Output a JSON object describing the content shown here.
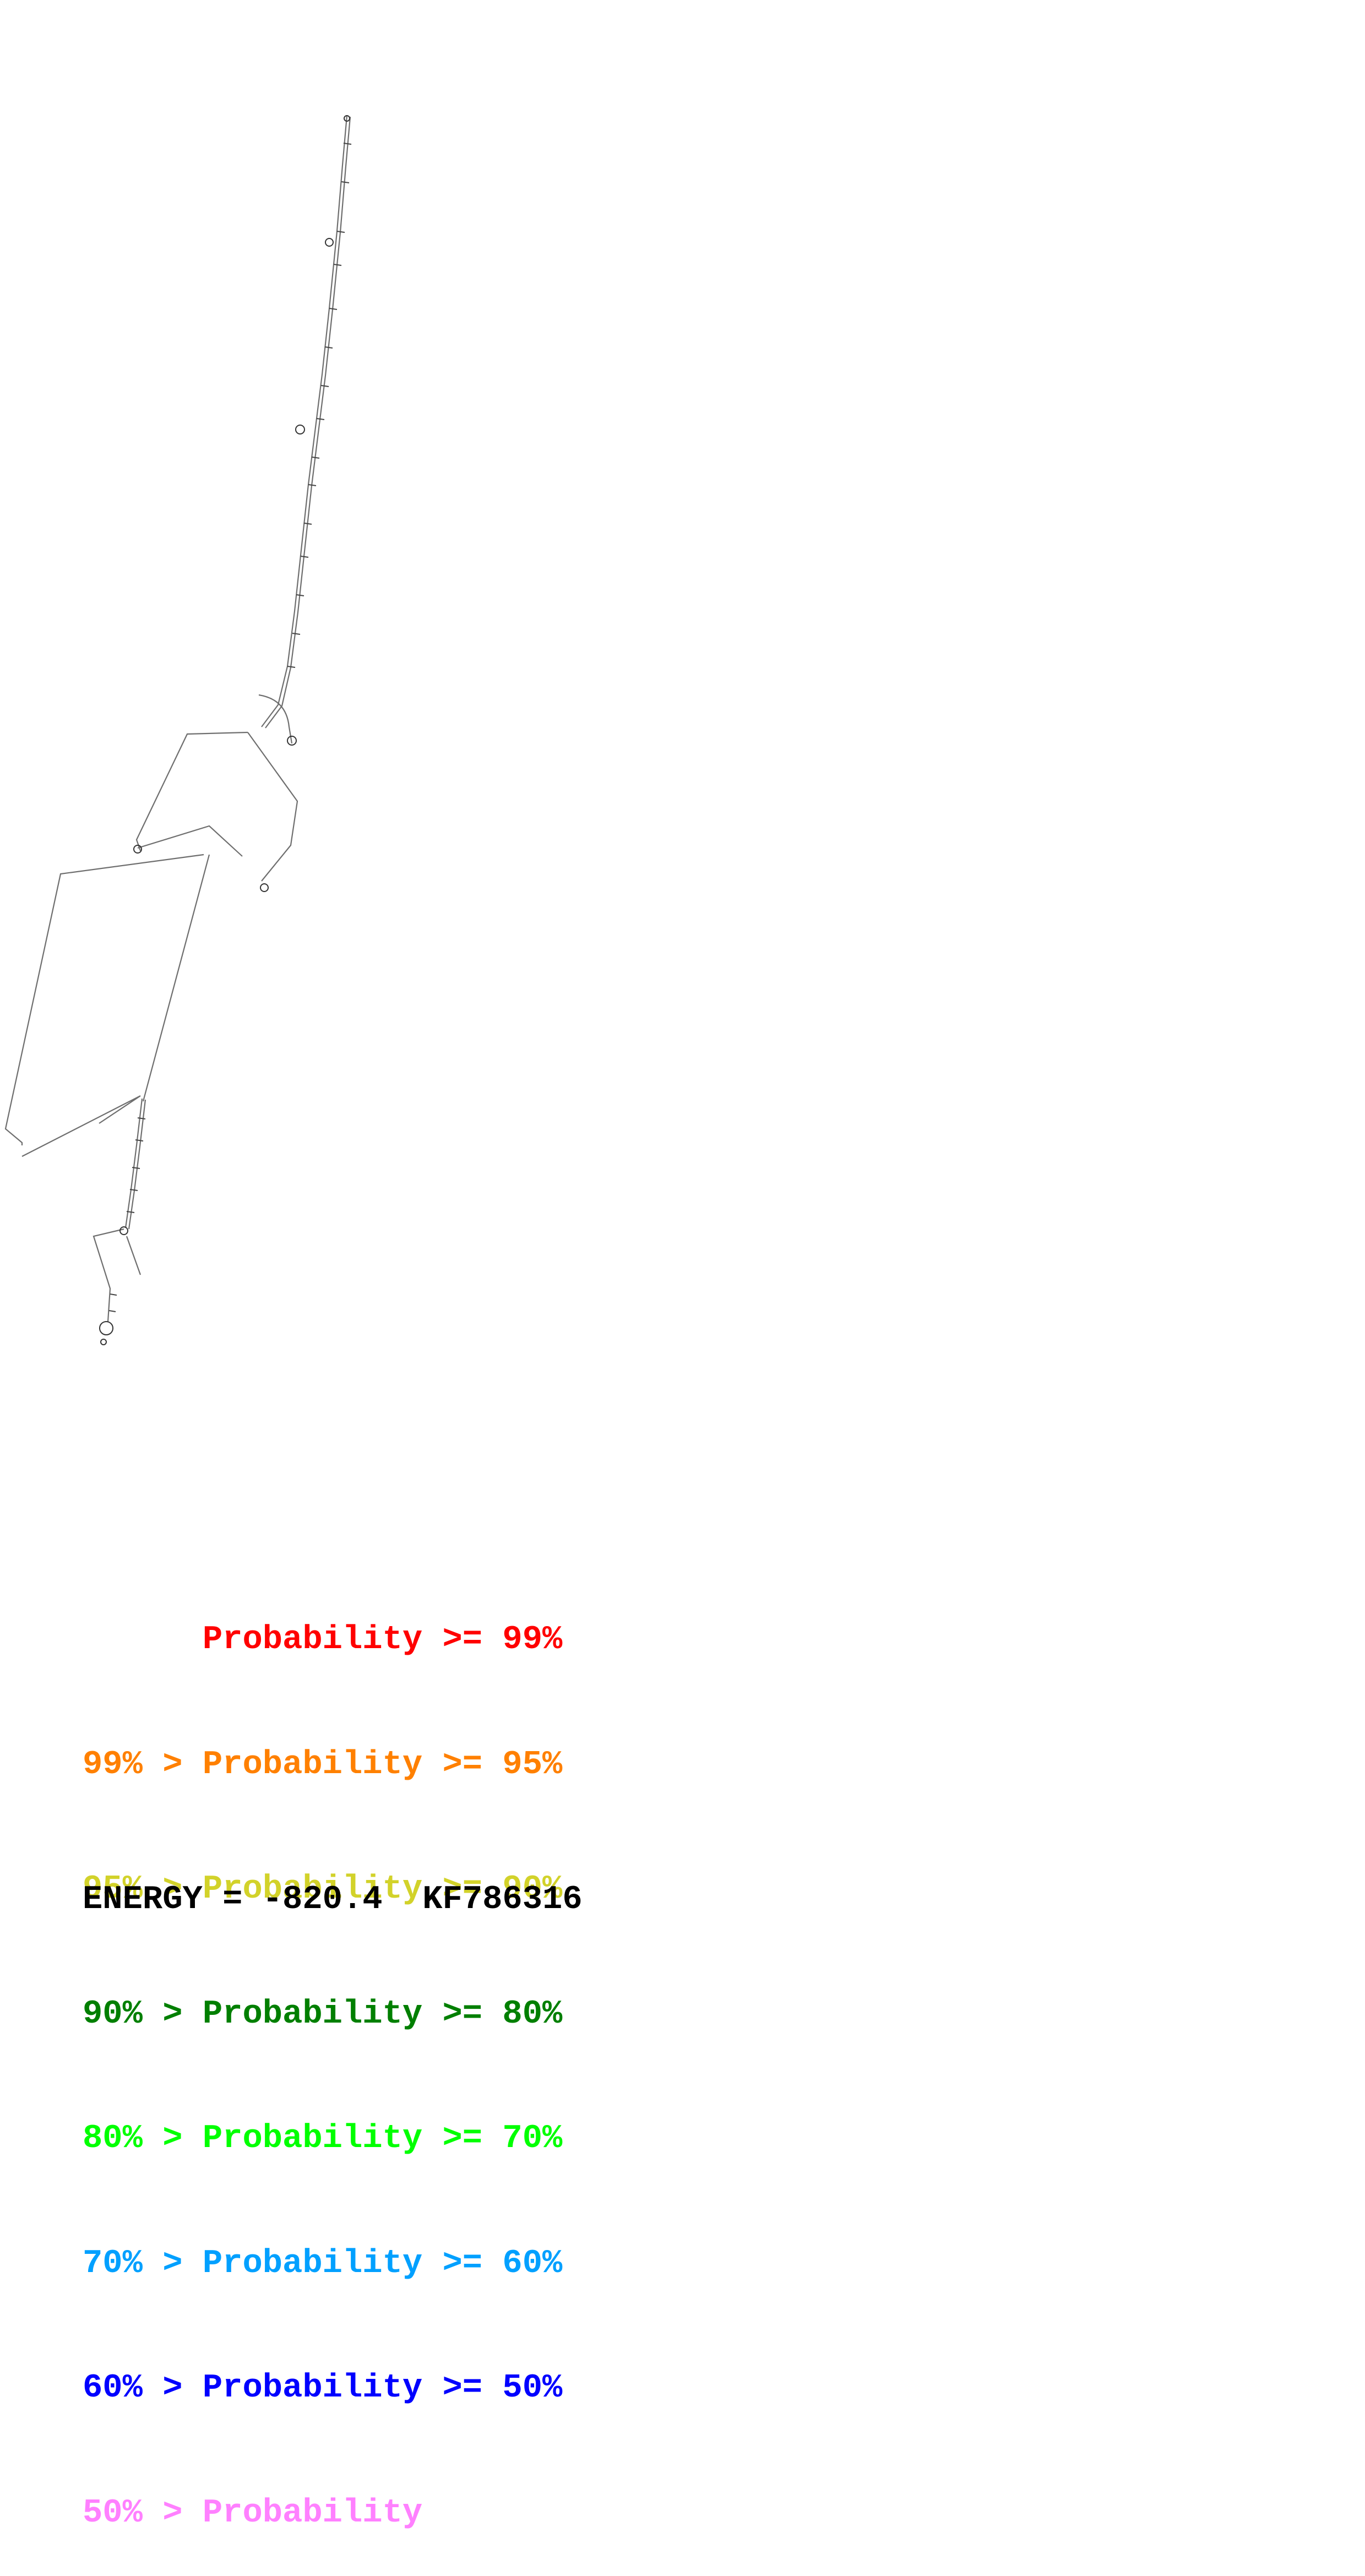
{
  "legend": [
    {
      "prefix": "    ",
      "label": "Probability",
      "suffix": "99%",
      "color": "#ff0000"
    },
    {
      "prefix": "99% > ",
      "label": "Probability",
      "suffix": "95%",
      "color": "#ff8000"
    },
    {
      "prefix": "95% > ",
      "label": "Probability",
      "suffix": "90%",
      "color": "#d2d22a"
    },
    {
      "prefix": "90% > ",
      "label": "Probability",
      "suffix": "80%",
      "color": "#007f00"
    },
    {
      "prefix": "80% > ",
      "label": "Probability",
      "suffix": "70%",
      "color": "#00ff00"
    },
    {
      "prefix": "70% > ",
      "label": "Probability",
      "suffix": "60%",
      "color": "#00a0ff"
    },
    {
      "prefix": "60% > ",
      "label": "Probability",
      "suffix": "50%",
      "color": "#0000ff"
    },
    {
      "prefix": "50% > ",
      "label": "Probability",
      "suffix": "",
      "color": "#ff80ff"
    }
  ],
  "legend_text": {
    "row0": "      Probability >= 99%",
    "row1": "99% > Probability >= 95%",
    "row2": "95% > Probability >= 90%",
    "row3": "90% > Probability >= 80%",
    "row4": "80% > Probability >= 70%",
    "row5": "70% > Probability >= 60%",
    "row6": "60% > Probability >= 50%",
    "row7": "50% > Probability"
  },
  "energy_line": "ENERGY = -820.4  KF786316",
  "structure": {
    "line_color": "#6e6e6e",
    "base_color": "#333333"
  }
}
